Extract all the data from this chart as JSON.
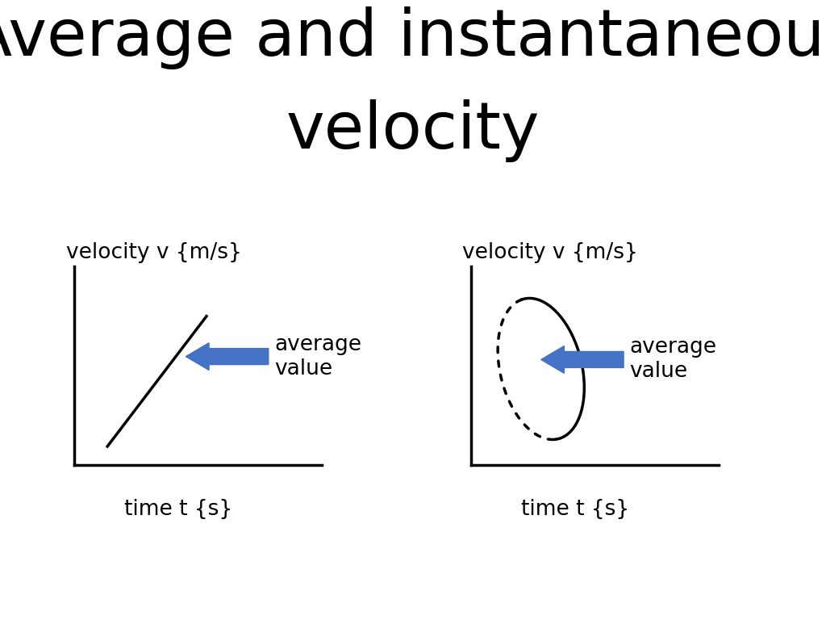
{
  "title_line1": "Average and instantaneous",
  "title_line2": "velocity",
  "title_fontsize": 58,
  "title_color": "#000000",
  "background_color": "#ffffff",
  "ylabel_left": "velocity v {m/s}",
  "ylabel_right": "velocity v {m/s}",
  "xlabel_left": "time t {s}",
  "xlabel_right": "time t {s}",
  "label_fontsize": 19,
  "arrow_label": "average\nvalue",
  "arrow_label_fontsize": 19,
  "arrow_color": "#4472c4",
  "axis_color": "#000000",
  "line_color": "#000000",
  "curve_color": "#000000"
}
